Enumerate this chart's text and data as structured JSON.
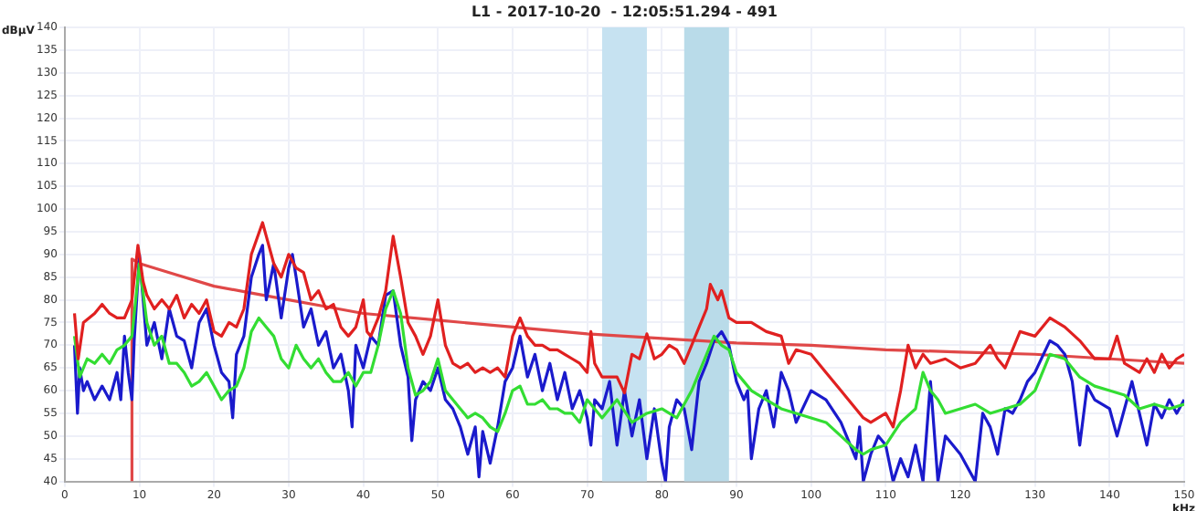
{
  "chart_data": {
    "type": "line",
    "title": "L1 - 2017-10-20  - 12:05:51.294 - 491",
    "xlabel": "kHz",
    "ylabel": "dBµV",
    "xlim": [
      0,
      150
    ],
    "ylim": [
      40,
      140
    ],
    "xticks": [
      0,
      10,
      20,
      30,
      40,
      50,
      60,
      70,
      80,
      90,
      100,
      110,
      120,
      130,
      140,
      150
    ],
    "yticks": [
      40,
      45,
      50,
      55,
      60,
      65,
      70,
      75,
      80,
      85,
      90,
      95,
      100,
      105,
      110,
      115,
      120,
      125,
      130,
      135,
      140
    ],
    "grid": true,
    "legend": false,
    "marker": "none",
    "line_style": "solid",
    "bands": [
      {
        "axis": "x",
        "from": 72,
        "to": 78,
        "color": "#c6e2f1"
      },
      {
        "axis": "x",
        "from": 83,
        "to": 89,
        "color": "#b9dbe9"
      }
    ],
    "series": [
      {
        "color": "#e02020",
        "x": [
          1.3,
          1.8,
          2.5,
          4,
          5,
          6,
          7,
          8,
          9,
          9.8,
          10.5,
          11,
          12,
          13,
          14,
          15,
          16,
          17,
          18,
          19,
          20,
          21,
          22,
          23,
          24,
          25,
          26.5,
          27,
          28,
          29,
          30,
          31,
          32,
          33,
          34,
          35,
          36,
          37,
          38,
          39,
          40,
          40.5,
          41,
          42,
          43,
          44,
          45,
          46,
          47,
          48,
          49,
          50,
          51,
          52,
          53,
          54,
          55,
          56,
          57,
          58,
          59,
          60,
          61,
          62,
          63,
          64,
          65,
          66,
          67,
          68,
          69,
          70,
          70.5,
          71,
          72,
          74,
          75,
          76,
          77,
          78,
          79,
          80,
          81,
          82,
          83,
          84,
          85,
          86,
          86.5,
          87.5,
          88,
          89,
          90,
          92,
          94,
          96,
          97,
          98,
          100,
          102,
          104,
          105,
          106,
          107,
          108,
          110,
          111,
          112,
          113,
          114,
          115,
          116,
          118,
          120,
          122,
          124,
          125,
          126,
          128,
          130,
          131,
          132,
          134,
          136,
          138,
          140,
          141,
          142,
          144,
          145,
          146,
          147,
          148,
          149,
          150
        ],
        "values": [
          77,
          67,
          75,
          77,
          79,
          77,
          76,
          76,
          80,
          92,
          84,
          81,
          78,
          80,
          78,
          81,
          76,
          79,
          77,
          80,
          73,
          72,
          75,
          74,
          78,
          90,
          97,
          94,
          88,
          85,
          90,
          87,
          86,
          80,
          82,
          78,
          79,
          74,
          72,
          74,
          80,
          73,
          72,
          76,
          82,
          94,
          85,
          75,
          72,
          68,
          72,
          80,
          70,
          66,
          65,
          66,
          64,
          65,
          64,
          65,
          63,
          72,
          76,
          72,
          70,
          70,
          69,
          69,
          68,
          67,
          66,
          64,
          73,
          66,
          63,
          63,
          59.5,
          68,
          67,
          72.5,
          67,
          68,
          70,
          69,
          66,
          70,
          74,
          78,
          83.4,
          80,
          82,
          76,
          75,
          75,
          73,
          72,
          66,
          69,
          68,
          64,
          60,
          58,
          56,
          54,
          53,
          55,
          52,
          60,
          70,
          65,
          68,
          66,
          67,
          65,
          66,
          70,
          67,
          65,
          73,
          72,
          74,
          76,
          74,
          71,
          67,
          67,
          72,
          66,
          64,
          67,
          64,
          68,
          65,
          67,
          68
        ]
      },
      {
        "color": "#33dd33",
        "x": [
          1.3,
          2,
          3,
          4,
          5,
          6,
          7,
          8,
          9,
          10,
          11,
          12,
          13,
          14,
          15,
          16,
          17,
          18,
          19,
          20,
          21,
          22,
          23,
          24,
          25,
          26,
          27,
          28,
          29,
          30,
          31,
          32,
          33,
          34,
          35,
          36,
          37,
          38,
          39,
          40,
          41,
          42,
          43,
          44,
          45,
          46,
          47,
          48,
          49,
          50,
          51,
          52,
          53,
          54,
          55,
          56,
          57,
          58,
          59,
          60,
          61,
          62,
          63,
          64,
          65,
          66,
          67,
          68,
          69,
          70,
          72,
          74,
          76,
          78,
          80,
          82,
          84,
          86,
          87,
          88,
          89,
          90,
          91,
          92,
          94,
          96,
          98,
          100,
          102,
          104,
          106,
          107,
          108,
          110,
          112,
          114,
          115,
          116,
          117,
          118,
          120,
          122,
          124,
          126,
          128,
          130,
          132,
          134,
          136,
          138,
          140,
          142,
          144,
          146,
          148,
          150
        ],
        "values": [
          72,
          63,
          67,
          66,
          68,
          66,
          69,
          70,
          72,
          88,
          75,
          70,
          72,
          66,
          66,
          64,
          61,
          62,
          64,
          61,
          58,
          60,
          61,
          65,
          73,
          76,
          74,
          72,
          67,
          65,
          70,
          67,
          65,
          67,
          64,
          62,
          62,
          64,
          61,
          64,
          64,
          70,
          78,
          82,
          77,
          65,
          59,
          60,
          62,
          67,
          60,
          58,
          56,
          54,
          55,
          54,
          52,
          51,
          55,
          60,
          61,
          57,
          57,
          58,
          56,
          56,
          55,
          55,
          53,
          58,
          54,
          58,
          53,
          55,
          56,
          54,
          60,
          68,
          72,
          70,
          69,
          64,
          62,
          60,
          58,
          56,
          55,
          54,
          53,
          50,
          47,
          46,
          47,
          48,
          53,
          56,
          64,
          60,
          58,
          55,
          56,
          57,
          55,
          56,
          57,
          60,
          68,
          67,
          63,
          61,
          60,
          59,
          56,
          57,
          56,
          57
        ]
      },
      {
        "color": "#1a1acc",
        "x": [
          1.3,
          1.7,
          2,
          2.5,
          3,
          4,
          5,
          6,
          7,
          7.5,
          8,
          8.5,
          9,
          9.3,
          10,
          10.5,
          11,
          12,
          13,
          14,
          15,
          16,
          17,
          18,
          19,
          20,
          21,
          22,
          22.5,
          23,
          24,
          25,
          26,
          26.5,
          27,
          28,
          29,
          30,
          30.5,
          31,
          32,
          33,
          34,
          35,
          36,
          37,
          38,
          38.5,
          39,
          40,
          41,
          42,
          43,
          44,
          45,
          46,
          46.5,
          47,
          48,
          49,
          50,
          51,
          52,
          53,
          54,
          55,
          55.5,
          56,
          57,
          58,
          59,
          60,
          61,
          62,
          63,
          64,
          65,
          66,
          67,
          68,
          69,
          70,
          70.5,
          71,
          72,
          73,
          74,
          75,
          76,
          77,
          78,
          79,
          80,
          80.5,
          81,
          82,
          83,
          84,
          85,
          86,
          87,
          88,
          89,
          90,
          91,
          91.5,
          92,
          93,
          94,
          95,
          96,
          97,
          98,
          100,
          102,
          104,
          106,
          106.5,
          107,
          108,
          109,
          110,
          111,
          112,
          113,
          114,
          115,
          116,
          117,
          118,
          120,
          122,
          123,
          124,
          125,
          126,
          127,
          128,
          129,
          130,
          132,
          133,
          134,
          135,
          136,
          137,
          138,
          140,
          141,
          142,
          143,
          144,
          145,
          146,
          147,
          148,
          149,
          150
        ],
        "values": [
          70,
          55,
          65,
          60,
          62,
          58,
          61,
          58,
          64,
          58,
          72,
          64,
          58,
          71,
          90,
          80,
          70,
          75,
          67,
          78,
          72,
          71,
          65,
          75,
          78,
          70,
          64,
          62,
          54,
          68,
          72,
          85,
          90,
          92,
          80,
          88,
          76,
          87,
          90,
          85,
          74,
          78,
          70,
          73,
          65,
          68,
          60,
          52,
          70,
          65,
          72,
          70,
          81,
          82,
          70,
          63,
          49,
          58,
          62,
          60,
          65,
          58,
          56,
          52,
          46,
          52,
          41,
          51,
          44,
          52,
          62,
          65,
          72,
          63,
          68,
          60,
          66,
          58,
          64,
          56,
          60,
          54,
          48,
          58,
          56,
          62,
          48,
          60,
          50,
          58,
          45,
          56,
          44,
          40,
          52,
          58,
          56,
          47,
          62,
          66,
          71,
          73,
          70,
          62,
          58,
          60,
          45,
          56,
          60,
          52,
          64,
          60,
          53,
          60,
          58,
          53,
          45,
          52,
          40,
          46,
          50,
          48,
          40,
          45,
          41,
          48,
          40,
          62,
          40,
          50,
          46,
          40,
          55,
          52,
          46,
          56,
          55,
          58,
          62,
          64,
          71,
          70,
          68,
          62,
          48,
          61,
          58,
          56,
          50,
          56,
          62,
          55,
          48,
          57,
          54,
          58,
          55,
          58
        ]
      },
      {
        "color": "#e04848",
        "x": [
          9,
          9,
          10,
          15,
          20,
          25,
          30,
          35,
          40,
          50,
          60,
          70,
          80,
          90,
          100,
          110,
          120,
          130,
          140,
          150
        ],
        "values": [
          40,
          89,
          88,
          85.5,
          83,
          81.5,
          80,
          78.5,
          77,
          75.5,
          74,
          72.5,
          71.5,
          70.5,
          70,
          69,
          68.5,
          68,
          67,
          66
        ]
      }
    ]
  }
}
